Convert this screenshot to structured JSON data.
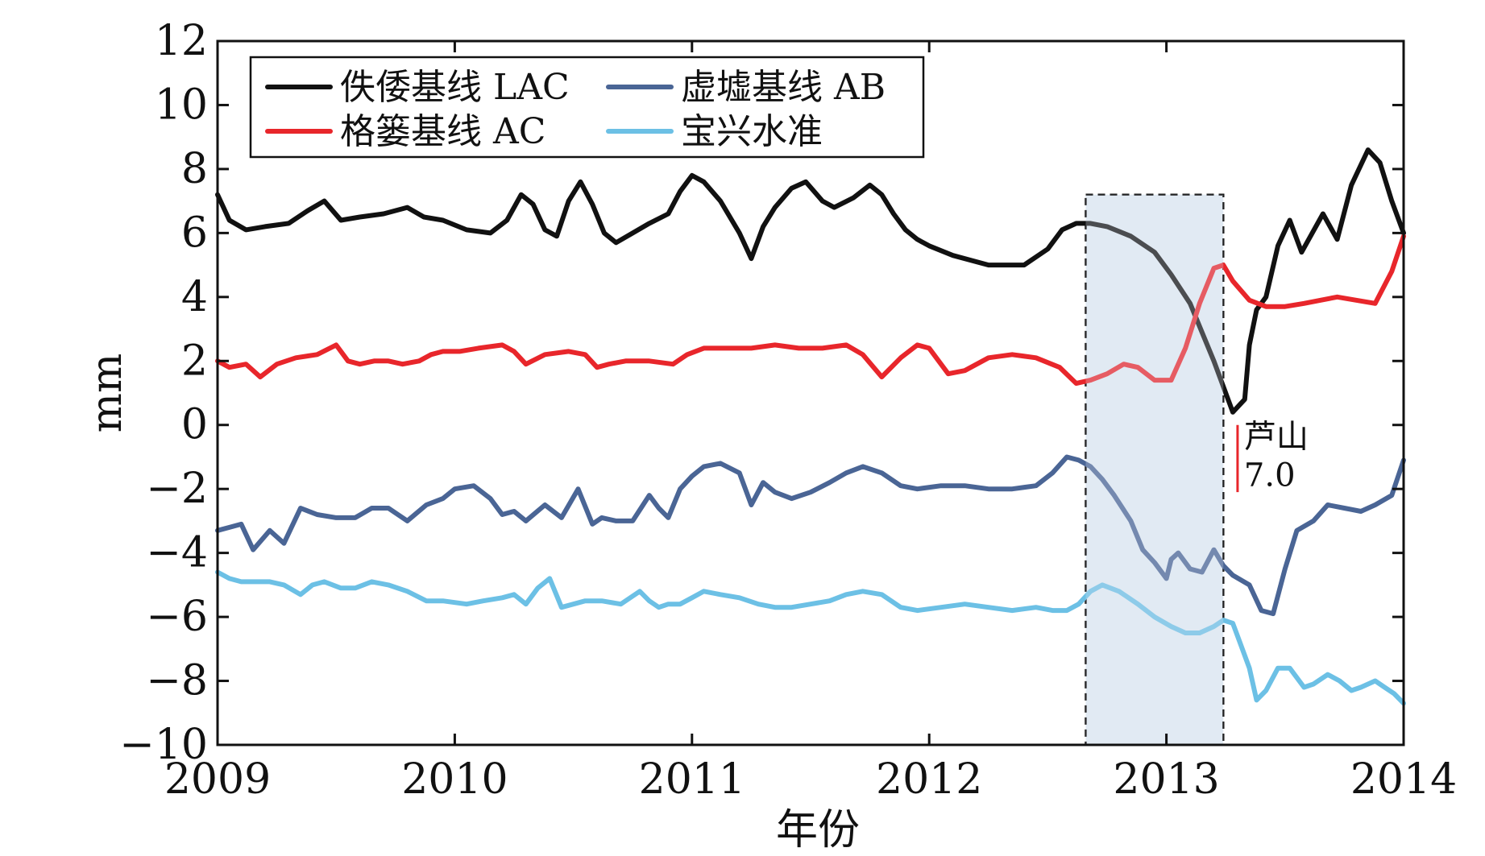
{
  "chart_data": {
    "type": "line",
    "title": "",
    "xlabel": "年份",
    "ylabel": "mm",
    "xlim": [
      2009,
      2014
    ],
    "ylim": [
      -10,
      12
    ],
    "xticks": [
      2009,
      2010,
      2011,
      2012,
      2013,
      2014
    ],
    "xtick_labels": [
      "2009",
      "2010",
      "2011",
      "2012",
      "2013",
      "2014"
    ],
    "yticks": [
      -10,
      -8,
      -6,
      -4,
      -2,
      0,
      2,
      4,
      6,
      8,
      10,
      12
    ],
    "ytick_labels": [
      "−10",
      "−8",
      "−6",
      "−4",
      "−2",
      "0",
      "2",
      "4",
      "6",
      "8",
      "10",
      "12"
    ],
    "grid": false,
    "legend_position": "top-left",
    "highlight_range": [
      2012.66,
      2013.24
    ],
    "highlight_color": "#e1eaf3",
    "annotation": {
      "x": 2013.3,
      "y_range": [
        -2.1,
        0
      ],
      "lines": [
        "芦山",
        "7.0"
      ],
      "color": "#e8262b"
    },
    "series": [
      {
        "name": "佚倭基线 LAC",
        "color": "#111111",
        "x": [
          2009.0,
          2009.05,
          2009.12,
          2009.2,
          2009.3,
          2009.38,
          2009.45,
          2009.52,
          2009.6,
          2009.7,
          2009.8,
          2009.87,
          2009.95,
          2010.05,
          2010.15,
          2010.22,
          2010.28,
          2010.33,
          2010.38,
          2010.43,
          2010.48,
          2010.53,
          2010.58,
          2010.63,
          2010.68,
          2010.75,
          2010.82,
          2010.9,
          2010.95,
          2011.0,
          2011.05,
          2011.12,
          2011.2,
          2011.25,
          2011.3,
          2011.35,
          2011.42,
          2011.48,
          2011.55,
          2011.6,
          2011.68,
          2011.75,
          2011.8,
          2011.85,
          2011.9,
          2011.95,
          2012.0,
          2012.1,
          2012.25,
          2012.4,
          2012.5,
          2012.56,
          2012.62,
          2012.68,
          2012.75,
          2012.85,
          2012.95,
          2013.02,
          2013.1,
          2013.2,
          2013.28,
          2013.33,
          2013.35,
          2013.38,
          2013.42,
          2013.47,
          2013.52,
          2013.57,
          2013.6,
          2013.66,
          2013.72,
          2013.78,
          2013.85,
          2013.9,
          2013.95,
          2014.0
        ],
        "values": [
          7.2,
          6.4,
          6.1,
          6.2,
          6.3,
          6.7,
          7.0,
          6.4,
          6.5,
          6.6,
          6.8,
          6.5,
          6.4,
          6.1,
          6.0,
          6.4,
          7.2,
          6.9,
          6.1,
          5.9,
          7.0,
          7.6,
          6.9,
          6.0,
          5.7,
          6.0,
          6.3,
          6.6,
          7.3,
          7.8,
          7.6,
          7.0,
          6.0,
          5.2,
          6.2,
          6.8,
          7.4,
          7.6,
          7.0,
          6.8,
          7.1,
          7.5,
          7.2,
          6.6,
          6.1,
          5.8,
          5.6,
          5.3,
          5.0,
          5.0,
          5.5,
          6.1,
          6.3,
          6.3,
          6.2,
          5.9,
          5.4,
          4.7,
          3.8,
          2.0,
          0.4,
          0.8,
          2.5,
          3.6,
          4.0,
          5.6,
          6.4,
          5.4,
          5.8,
          6.6,
          5.8,
          7.5,
          8.6,
          8.2,
          7.0,
          6.0
        ]
      },
      {
        "name": "格篓基线 AC",
        "color": "#e8262b",
        "x": [
          2009.0,
          2009.05,
          2009.12,
          2009.18,
          2009.25,
          2009.33,
          2009.42,
          2009.5,
          2009.55,
          2009.6,
          2009.66,
          2009.72,
          2009.78,
          2009.85,
          2009.9,
          2009.95,
          2010.02,
          2010.1,
          2010.2,
          2010.25,
          2010.3,
          2010.38,
          2010.48,
          2010.55,
          2010.6,
          2010.65,
          2010.72,
          2010.82,
          2010.92,
          2010.98,
          2011.05,
          2011.15,
          2011.25,
          2011.35,
          2011.45,
          2011.55,
          2011.65,
          2011.72,
          2011.8,
          2011.88,
          2011.95,
          2012.0,
          2012.08,
          2012.15,
          2012.25,
          2012.35,
          2012.45,
          2012.55,
          2012.62,
          2012.68,
          2012.75,
          2012.82,
          2012.88,
          2012.95,
          2013.02,
          2013.08,
          2013.14,
          2013.2,
          2013.24,
          2013.28,
          2013.35,
          2013.42,
          2013.5,
          2013.58,
          2013.65,
          2013.72,
          2013.8,
          2013.88,
          2013.95,
          2014.0
        ],
        "values": [
          2.0,
          1.8,
          1.9,
          1.5,
          1.9,
          2.1,
          2.2,
          2.5,
          2.0,
          1.9,
          2.0,
          2.0,
          1.9,
          2.0,
          2.2,
          2.3,
          2.3,
          2.4,
          2.5,
          2.3,
          1.9,
          2.2,
          2.3,
          2.2,
          1.8,
          1.9,
          2.0,
          2.0,
          1.9,
          2.2,
          2.4,
          2.4,
          2.4,
          2.5,
          2.4,
          2.4,
          2.5,
          2.2,
          1.5,
          2.1,
          2.5,
          2.4,
          1.6,
          1.7,
          2.1,
          2.2,
          2.1,
          1.8,
          1.3,
          1.4,
          1.6,
          1.9,
          1.8,
          1.4,
          1.4,
          2.4,
          3.8,
          4.9,
          5.0,
          4.5,
          3.9,
          3.7,
          3.7,
          3.8,
          3.9,
          4.0,
          3.9,
          3.8,
          4.8,
          5.9
        ]
      },
      {
        "name": "虚墟基线 AB",
        "color": "#4a6595",
        "x": [
          2009.0,
          2009.05,
          2009.1,
          2009.15,
          2009.22,
          2009.28,
          2009.35,
          2009.42,
          2009.5,
          2009.58,
          2009.65,
          2009.72,
          2009.8,
          2009.88,
          2009.95,
          2010.0,
          2010.08,
          2010.15,
          2010.2,
          2010.25,
          2010.3,
          2010.38,
          2010.45,
          2010.52,
          2010.58,
          2010.62,
          2010.68,
          2010.75,
          2010.82,
          2010.86,
          2010.9,
          2010.95,
          2011.0,
          2011.05,
          2011.12,
          2011.2,
          2011.25,
          2011.3,
          2011.35,
          2011.42,
          2011.5,
          2011.58,
          2011.65,
          2011.72,
          2011.8,
          2011.88,
          2011.95,
          2012.05,
          2012.15,
          2012.25,
          2012.35,
          2012.45,
          2012.52,
          2012.58,
          2012.63,
          2012.68,
          2012.73,
          2012.78,
          2012.85,
          2012.9,
          2012.95,
          2013.0,
          2013.02,
          2013.05,
          2013.1,
          2013.15,
          2013.2,
          2013.24,
          2013.28,
          2013.35,
          2013.4,
          2013.45,
          2013.5,
          2013.55,
          2013.62,
          2013.68,
          2013.75,
          2013.82,
          2013.88,
          2013.95,
          2014.0
        ],
        "values": [
          -3.3,
          -3.2,
          -3.1,
          -3.9,
          -3.3,
          -3.7,
          -2.6,
          -2.8,
          -2.9,
          -2.9,
          -2.6,
          -2.6,
          -3.0,
          -2.5,
          -2.3,
          -2.0,
          -1.9,
          -2.3,
          -2.8,
          -2.7,
          -3.0,
          -2.5,
          -2.9,
          -2.0,
          -3.1,
          -2.9,
          -3.0,
          -3.0,
          -2.2,
          -2.6,
          -2.9,
          -2.0,
          -1.6,
          -1.3,
          -1.2,
          -1.5,
          -2.5,
          -1.8,
          -2.1,
          -2.3,
          -2.1,
          -1.8,
          -1.5,
          -1.3,
          -1.5,
          -1.9,
          -2.0,
          -1.9,
          -1.9,
          -2.0,
          -2.0,
          -1.9,
          -1.5,
          -1.0,
          -1.1,
          -1.3,
          -1.7,
          -2.2,
          -3.0,
          -3.9,
          -4.3,
          -4.8,
          -4.2,
          -4.0,
          -4.5,
          -4.6,
          -3.9,
          -4.4,
          -4.7,
          -5.0,
          -5.8,
          -5.9,
          -4.5,
          -3.3,
          -3.0,
          -2.5,
          -2.6,
          -2.7,
          -2.5,
          -2.2,
          -1.1
        ]
      },
      {
        "name": "宝兴水准",
        "color": "#6cc0e5",
        "x": [
          2009.0,
          2009.05,
          2009.1,
          2009.15,
          2009.22,
          2009.28,
          2009.35,
          2009.4,
          2009.45,
          2009.52,
          2009.58,
          2009.65,
          2009.72,
          2009.8,
          2009.88,
          2009.95,
          2010.05,
          2010.12,
          2010.2,
          2010.25,
          2010.3,
          2010.35,
          2010.4,
          2010.45,
          2010.5,
          2010.55,
          2010.62,
          2010.7,
          2010.78,
          2010.82,
          2010.86,
          2010.9,
          2010.95,
          2011.0,
          2011.05,
          2011.12,
          2011.2,
          2011.28,
          2011.35,
          2011.42,
          2011.5,
          2011.58,
          2011.65,
          2011.72,
          2011.8,
          2011.88,
          2011.95,
          2012.05,
          2012.15,
          2012.25,
          2012.35,
          2012.45,
          2012.52,
          2012.58,
          2012.63,
          2012.68,
          2012.73,
          2012.8,
          2012.88,
          2012.95,
          2013.02,
          2013.08,
          2013.14,
          2013.2,
          2013.24,
          2013.28,
          2013.31,
          2013.35,
          2013.38,
          2013.42,
          2013.47,
          2013.52,
          2013.58,
          2013.62,
          2013.68,
          2013.73,
          2013.78,
          2013.82,
          2013.88,
          2013.92,
          2013.96,
          2014.0
        ],
        "values": [
          -4.6,
          -4.8,
          -4.9,
          -4.9,
          -4.9,
          -5.0,
          -5.3,
          -5.0,
          -4.9,
          -5.1,
          -5.1,
          -4.9,
          -5.0,
          -5.2,
          -5.5,
          -5.5,
          -5.6,
          -5.5,
          -5.4,
          -5.3,
          -5.6,
          -5.1,
          -4.8,
          -5.7,
          -5.6,
          -5.5,
          -5.5,
          -5.6,
          -5.2,
          -5.5,
          -5.7,
          -5.6,
          -5.6,
          -5.4,
          -5.2,
          -5.3,
          -5.4,
          -5.6,
          -5.7,
          -5.7,
          -5.6,
          -5.5,
          -5.3,
          -5.2,
          -5.3,
          -5.7,
          -5.8,
          -5.7,
          -5.6,
          -5.7,
          -5.8,
          -5.7,
          -5.8,
          -5.8,
          -5.6,
          -5.2,
          -5.0,
          -5.2,
          -5.6,
          -6.0,
          -6.3,
          -6.5,
          -6.5,
          -6.3,
          -6.1,
          -6.2,
          -6.8,
          -7.6,
          -8.6,
          -8.3,
          -7.6,
          -7.6,
          -8.2,
          -8.1,
          -7.8,
          -8.0,
          -8.3,
          -8.2,
          -8.0,
          -8.2,
          -8.4,
          -8.7
        ]
      }
    ]
  }
}
